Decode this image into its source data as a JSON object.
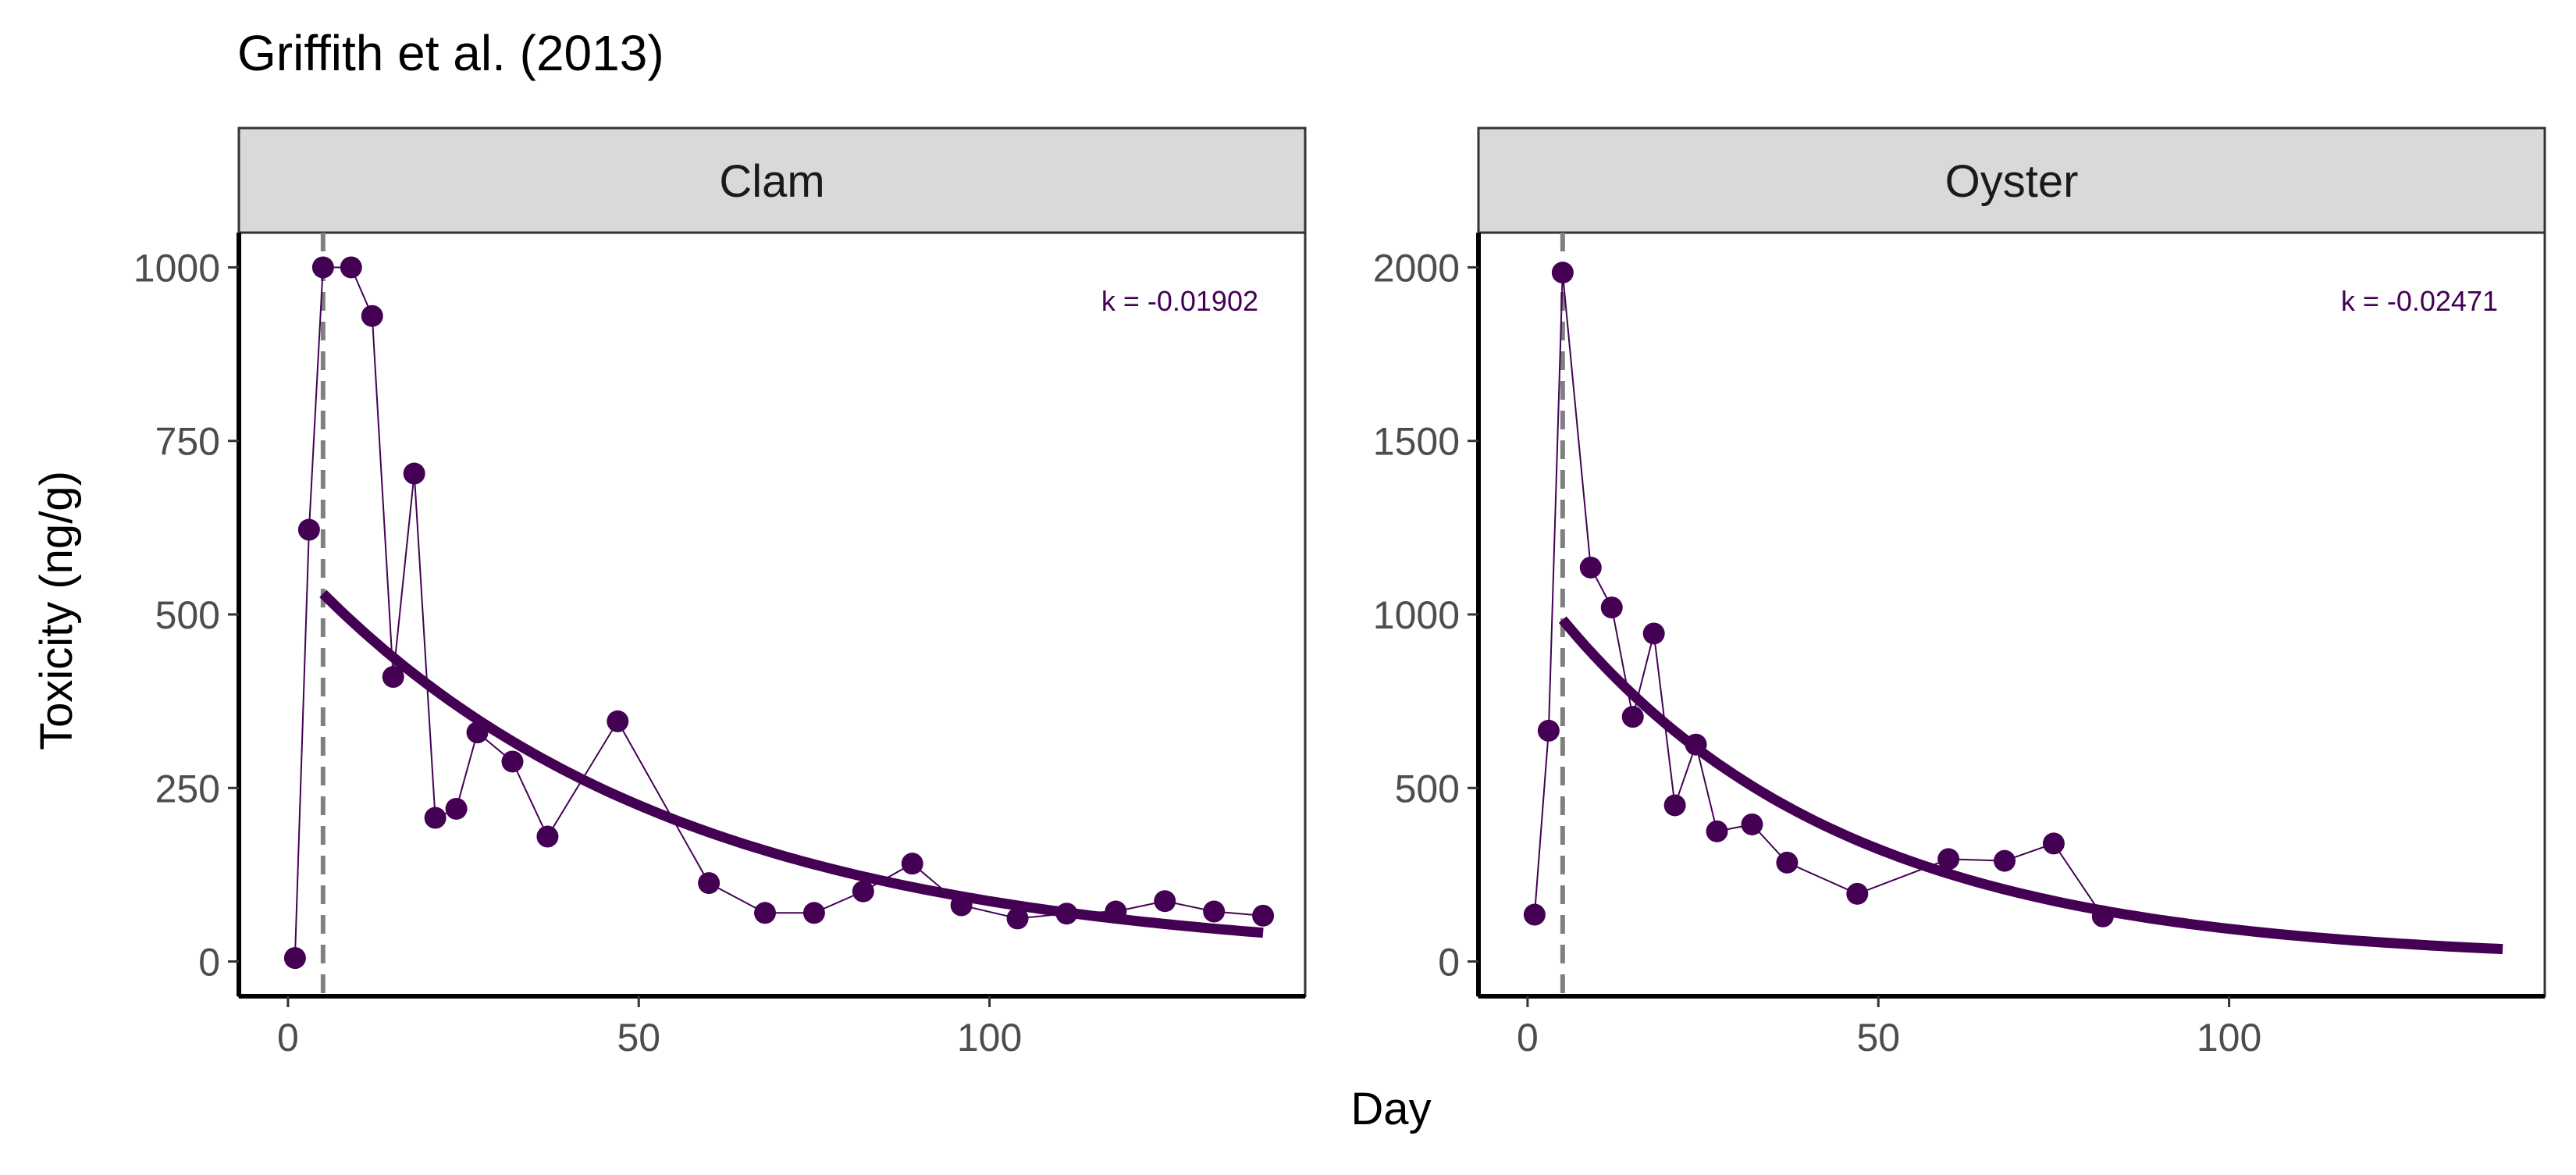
{
  "chart_data": {
    "type": "scatter",
    "title": "Griffith et al. (2013)",
    "xlabel": "Day",
    "ylabel": "Toxicity (ng/g)",
    "grid": false,
    "legend": "none",
    "colors": {
      "series": "#440154",
      "vline": "#808080",
      "strip_fill": "#d9d9d9",
      "strip_border": "#333333",
      "axis": "#000000",
      "tick_label": "#4d4d4d"
    },
    "x_ticks": [
      0,
      50,
      100
    ],
    "x_ticks_labels": [
      "0",
      "50",
      "100"
    ],
    "xlim": [
      -7,
      145
    ],
    "vline_x": 5,
    "panels": [
      {
        "name": "Clam",
        "annotation": "k = -0.01902",
        "k": -0.01902,
        "ylim": [
          -50,
          1050
        ],
        "y_ticks": [
          0,
          250,
          500,
          750,
          1000
        ],
        "y_ticks_labels": [
          "0",
          "250",
          "500",
          "750",
          "1000"
        ],
        "x": [
          1,
          3,
          5,
          9,
          12,
          15,
          18,
          21,
          24,
          27,
          32,
          37,
          47,
          60,
          68,
          75,
          82,
          89,
          96,
          104,
          111,
          118,
          125,
          132,
          139
        ],
        "y": [
          5,
          622,
          1000,
          1000,
          930,
          410,
          703,
          207,
          220,
          330,
          288,
          180,
          346,
          113,
          70,
          70,
          101,
          141,
          81,
          62,
          69,
          72,
          87,
          72,
          66
        ],
        "fit": {
          "x_start": 5,
          "x_end": 139,
          "y0": 530
        }
      },
      {
        "name": "Oyster",
        "annotation": "k = -0.02471",
        "k": -0.02471,
        "ylim": [
          -100,
          2100
        ],
        "y_ticks": [
          0,
          500,
          1000,
          1500,
          2000
        ],
        "y_ticks_labels": [
          "0",
          "500",
          "1000",
          "1500",
          "2000"
        ],
        "x": [
          1,
          3,
          5,
          9,
          12,
          15,
          18,
          21,
          24,
          27,
          32,
          37,
          47,
          60,
          68,
          75,
          82
        ],
        "y": [
          135,
          665,
          1985,
          1135,
          1020,
          705,
          945,
          450,
          625,
          375,
          395,
          285,
          195,
          295,
          290,
          340,
          130
        ],
        "fit": {
          "x_start": 5,
          "x_end": 139,
          "y0": 985
        }
      }
    ]
  }
}
